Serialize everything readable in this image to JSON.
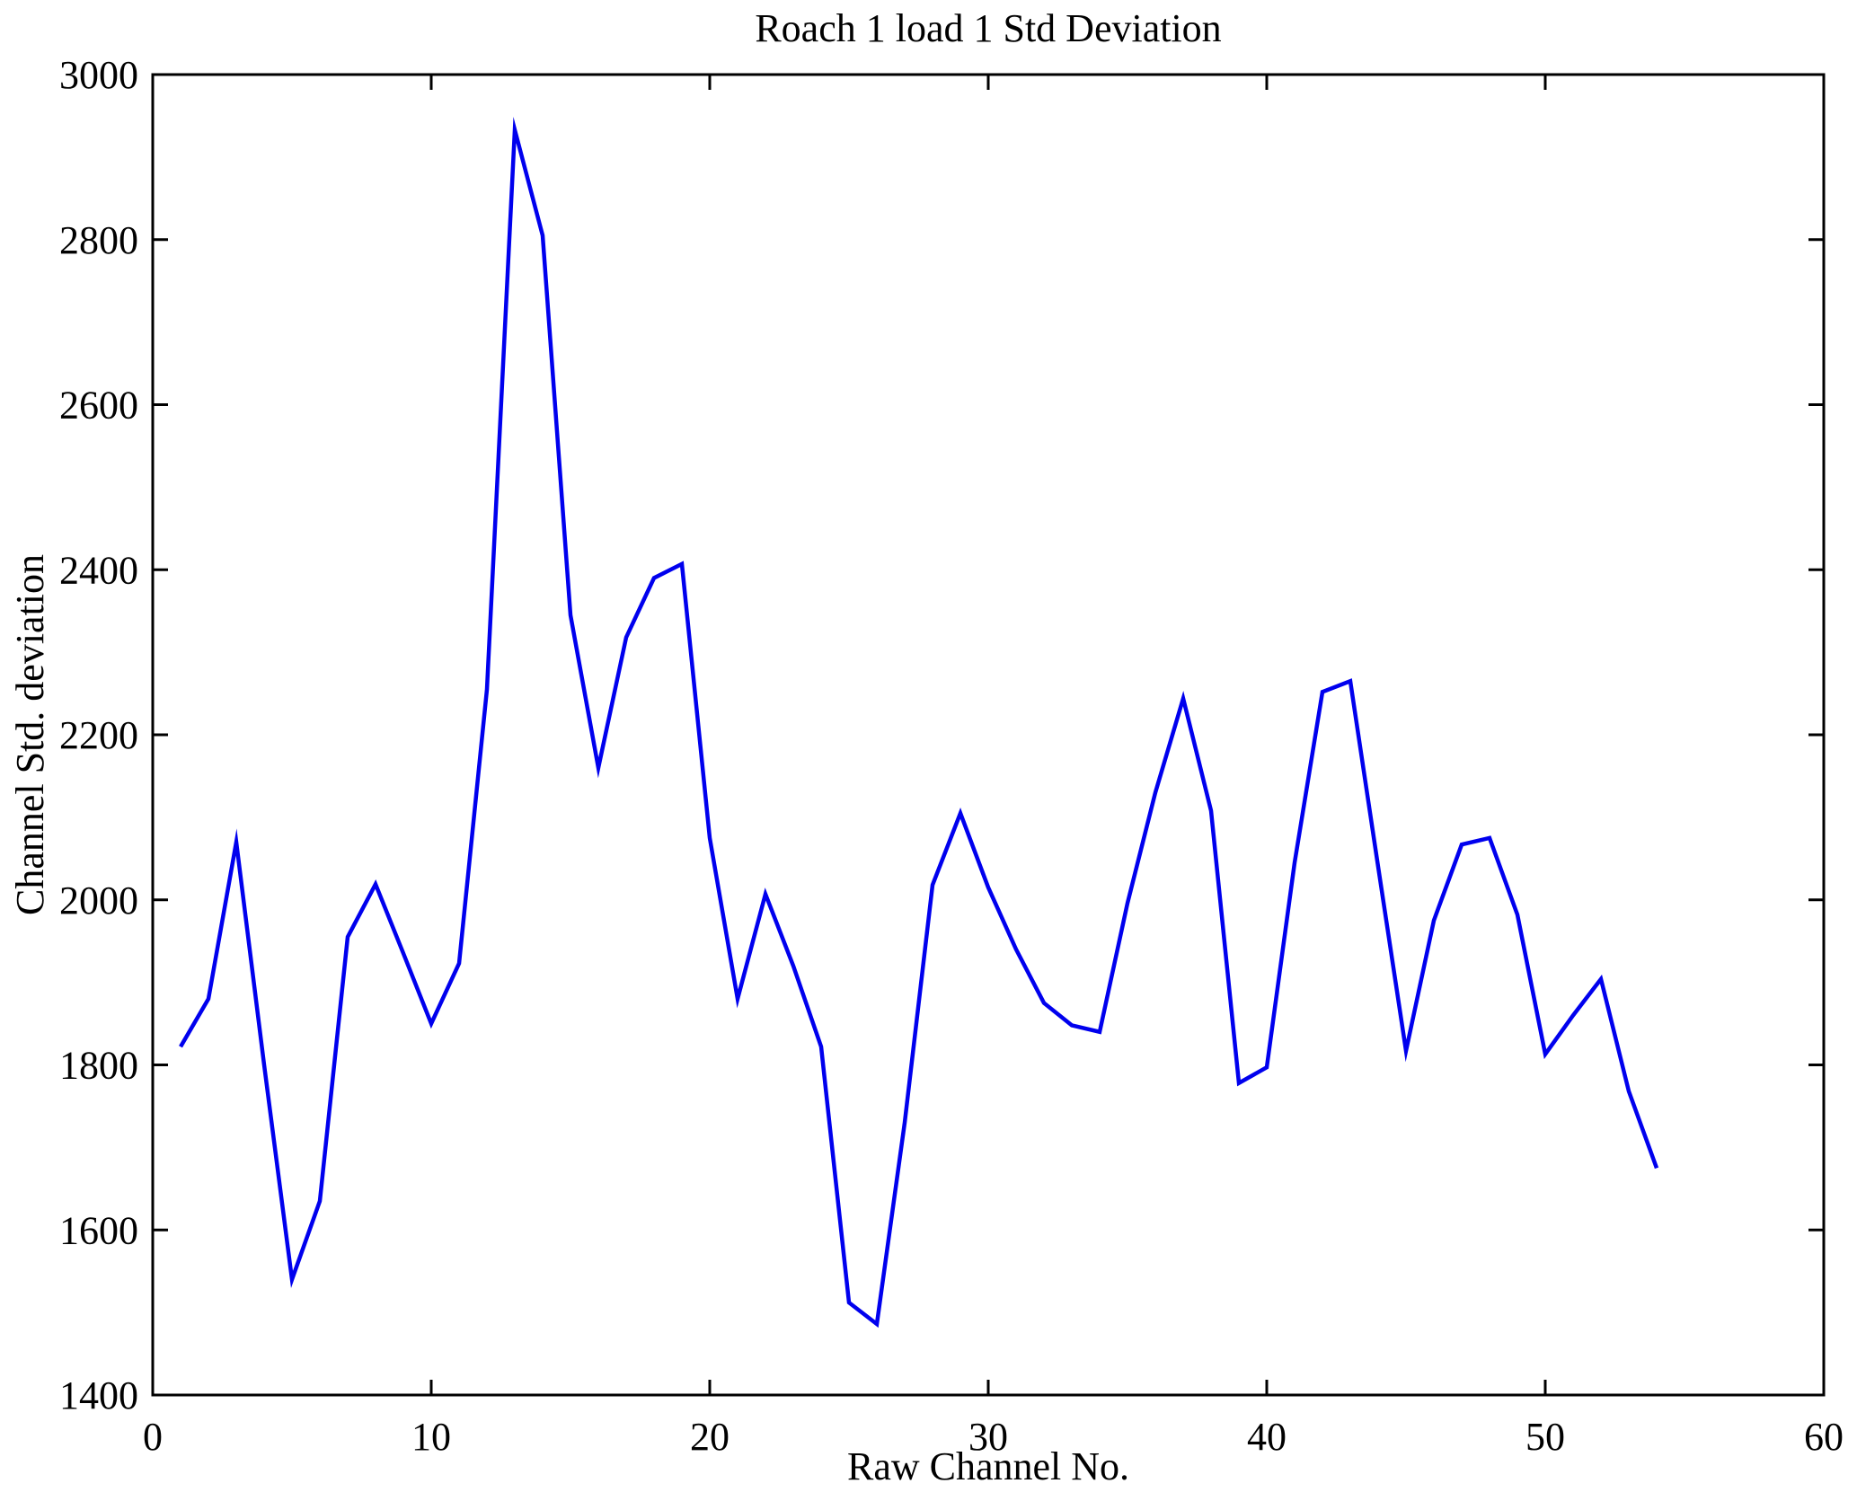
{
  "figure": {
    "title": "Roach 1 load 1 Std Deviation",
    "xlabel": "Raw Channel No.",
    "ylabel": "Channel Std. deviation"
  },
  "chart_data": {
    "type": "line",
    "title": "Roach 1 load 1 Std Deviation",
    "xlabel": "Raw Channel No.",
    "ylabel": "Channel Std. deviation",
    "xlim": [
      0,
      60
    ],
    "ylim": [
      1400,
      3000
    ],
    "xticks": [
      0,
      10,
      20,
      30,
      40,
      50,
      60
    ],
    "yticks": [
      1400,
      1600,
      1800,
      2000,
      2200,
      2400,
      2600,
      2800,
      3000
    ],
    "grid": false,
    "legend": null,
    "line_color": "#0000ee",
    "axis_color": "#000000",
    "series": [
      {
        "name": "Channel Std deviation",
        "x": [
          1,
          2,
          3,
          4,
          5,
          6,
          7,
          8,
          9,
          10,
          11,
          12,
          13,
          14,
          15,
          16,
          17,
          18,
          19,
          20,
          21,
          22,
          23,
          24,
          25,
          26,
          27,
          28,
          29,
          30,
          31,
          32,
          33,
          34,
          35,
          36,
          37,
          38,
          39,
          40,
          41,
          42,
          43,
          44,
          45,
          46,
          47,
          48,
          49,
          50,
          51,
          52,
          53,
          54
        ],
        "values": [
          1822,
          1880,
          2070,
          1800,
          1540,
          1635,
          1955,
          2019,
          1935,
          1850,
          1923,
          2255,
          2933,
          2805,
          2345,
          2160,
          2318,
          2390,
          2407,
          2075,
          1880,
          2007,
          1920,
          1822,
          1512,
          1486,
          1730,
          2018,
          2105,
          2015,
          1940,
          1875,
          1848,
          1840,
          1996,
          2130,
          2244,
          2108,
          1778,
          1797,
          2045,
          2252,
          2265,
          2040,
          1817,
          1975,
          2067,
          2075,
          1982,
          1813,
          1860,
          1904,
          1768,
          1675
        ]
      }
    ]
  }
}
